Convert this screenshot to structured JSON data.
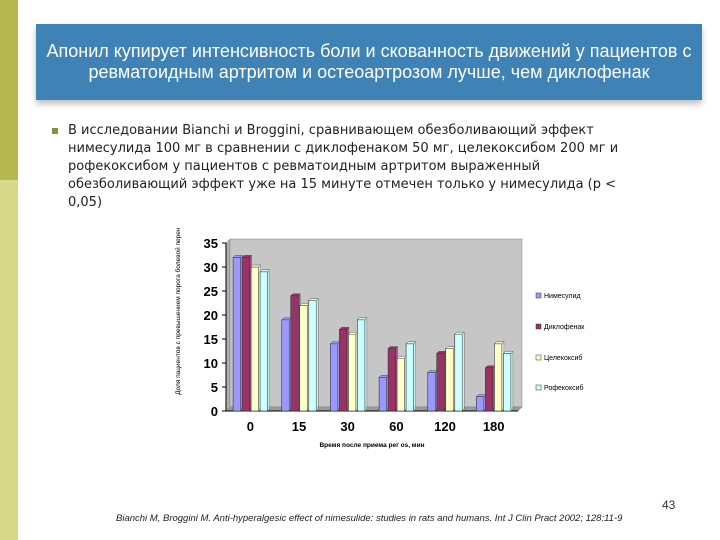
{
  "slide": {
    "title": "Апонил купирует интенсивность боли и скованность движений у пациентов с ревматоидным артритом и остеоартрозом лучше, чем диклофенак",
    "intro": "В исследовании Bianchi и Broggini, сравнивающем обезболивающий эффект\nнимесулида 100 мг в сравнении с диклофенаком 50 мг, целекоксибом 200 мг и\nрофекоксибом у пациентов с ревматоидным артритом выраженный\nобезболивающий эффект уже на 15 минуте отмечен только у нимесулида (p <\n0,05)",
    "page_number": "43",
    "citation": "Bianchi M, Broggini M. Anti-hyperalgesic effect of nimesulide: studies in rats and humans. Int J Clin Pract 2002; 128:11-9",
    "colors": {
      "accent": "#3e82b6",
      "deco_dark": "#b5b84f",
      "deco_light": "#d6d98a"
    }
  },
  "chart_data": {
    "type": "bar",
    "categories": [
      "0",
      "15",
      "30",
      "60",
      "120",
      "180"
    ],
    "series": [
      {
        "name": "Нимесулид",
        "values": [
          32,
          19,
          14,
          7,
          8,
          3
        ],
        "color": "#9999ff"
      },
      {
        "name": "Диклофенак",
        "values": [
          32,
          24,
          17,
          13,
          12,
          9
        ],
        "color": "#993366"
      },
      {
        "name": "Целекоксиб",
        "values": [
          30,
          22,
          16,
          11,
          13,
          14
        ],
        "color": "#ffffcc"
      },
      {
        "name": "Рофекоксиб",
        "values": [
          29,
          23,
          19,
          14,
          16,
          12
        ],
        "color": "#ccffff"
      }
    ],
    "xlabel": "Время после приема рег os, мин",
    "ylabel": "Доля пациентов с превышением порога болевой переносимости",
    "ylim": [
      0,
      35
    ],
    "yticks": [
      0,
      5,
      10,
      15,
      20,
      25,
      30,
      35
    ],
    "legend_position": "right",
    "grid": false
  }
}
